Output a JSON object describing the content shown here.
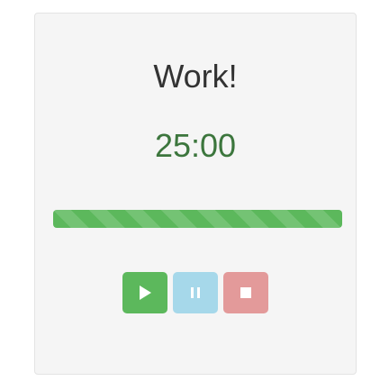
{
  "timer_panel": {
    "mode_label": "Work!",
    "time_display": "25:00",
    "progress_fraction": 1.0
  },
  "colors": {
    "timer_text": "#3c763d",
    "progress_fill": "#5cb85c",
    "play_button": "#5cb85c",
    "pause_button": "#a6d8ea",
    "stop_button": "#e39a9a",
    "icon": "#ffffff"
  },
  "controls": {
    "play": {
      "icon": "play-icon"
    },
    "pause": {
      "icon": "pause-icon"
    },
    "stop": {
      "icon": "stop-icon"
    }
  }
}
